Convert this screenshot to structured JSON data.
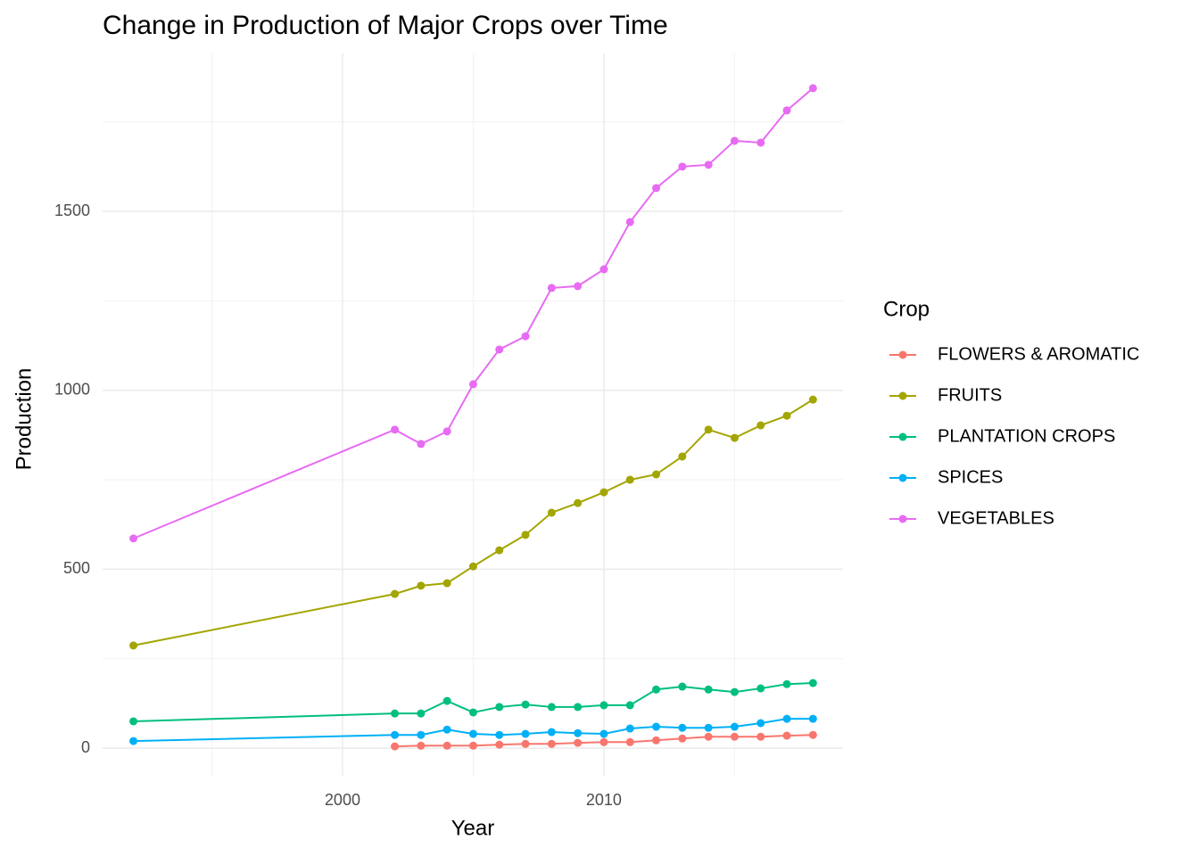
{
  "chart_data": {
    "type": "line",
    "title": "Change in Production of Major Crops over Time",
    "x_label": "Year",
    "y_label": "Production",
    "legend_title": "Crop",
    "x": [
      1992,
      2002,
      2003,
      2004,
      2005,
      2006,
      2007,
      2008,
      2009,
      2010,
      2011,
      2012,
      2013,
      2014,
      2015,
      2016,
      2017,
      2018
    ],
    "series": [
      {
        "name": "FLOWERS & AROMATIC",
        "color": "#F8766D",
        "values": [
          null,
          5,
          7,
          7,
          7,
          10,
          12,
          12,
          15,
          17,
          17,
          22,
          27,
          32,
          32,
          32,
          35,
          37
        ]
      },
      {
        "name": "FRUITS",
        "color": "#A3A500",
        "values": [
          287,
          431,
          454,
          461,
          508,
          553,
          596,
          658,
          685,
          715,
          750,
          765,
          815,
          890,
          867,
          902,
          929,
          974
        ]
      },
      {
        "name": "PLANTATION CROPS",
        "color": "#00BF7D",
        "values": [
          75,
          97,
          97,
          132,
          100,
          115,
          122,
          115,
          115,
          120,
          120,
          164,
          172,
          164,
          157,
          167,
          179,
          182
        ]
      },
      {
        "name": "SPICES",
        "color": "#00B0F6",
        "values": [
          20,
          37,
          37,
          52,
          40,
          37,
          40,
          45,
          42,
          40,
          55,
          60,
          57,
          57,
          60,
          70,
          82,
          82
        ]
      },
      {
        "name": "VEGETABLES",
        "color": "#E76BF3",
        "values": [
          586,
          890,
          850,
          885,
          1017,
          1114,
          1151,
          1286,
          1291,
          1338,
          1470,
          1565,
          1625,
          1630,
          1697,
          1692,
          1782,
          1844
        ]
      }
    ],
    "xlim": [
      1990.82,
      2019.15
    ],
    "ylim": [
      -77,
      1941
    ],
    "xticks": [
      2000,
      2010
    ],
    "yticks": [
      0,
      500,
      1000,
      1500
    ],
    "grid": true,
    "legend": "right"
  }
}
